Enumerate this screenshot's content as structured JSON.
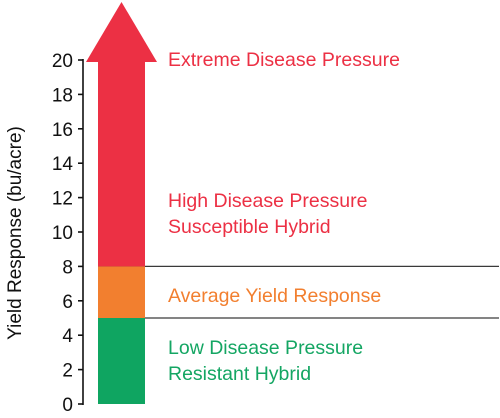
{
  "chart_data": {
    "type": "bar",
    "ylabel": "Yield Response (bu/acre)",
    "ylim": [
      0,
      20
    ],
    "yticks": [
      0,
      2,
      4,
      6,
      8,
      10,
      12,
      14,
      16,
      18,
      20
    ],
    "bar_top_arrow": true,
    "segments": [
      {
        "from": 0,
        "to": 5,
        "color": "#0fa561",
        "label": [
          "Low Disease Pressure",
          "Resistant Hybrid"
        ]
      },
      {
        "from": 5,
        "to": 8,
        "color": "#f27f2f",
        "label": [
          "Average Yield Response"
        ]
      },
      {
        "from": 8,
        "to": 20,
        "color": "#ec3044",
        "label_mid": [
          "High Disease Pressure",
          "Susceptible Hybrid"
        ],
        "label_top": [
          "Extreme Disease Pressure"
        ]
      }
    ],
    "threshold_lines": [
      5,
      8
    ],
    "label_colors": {
      "low": "#14a663",
      "average": "#f27f2f",
      "high": "#ec3044"
    }
  }
}
